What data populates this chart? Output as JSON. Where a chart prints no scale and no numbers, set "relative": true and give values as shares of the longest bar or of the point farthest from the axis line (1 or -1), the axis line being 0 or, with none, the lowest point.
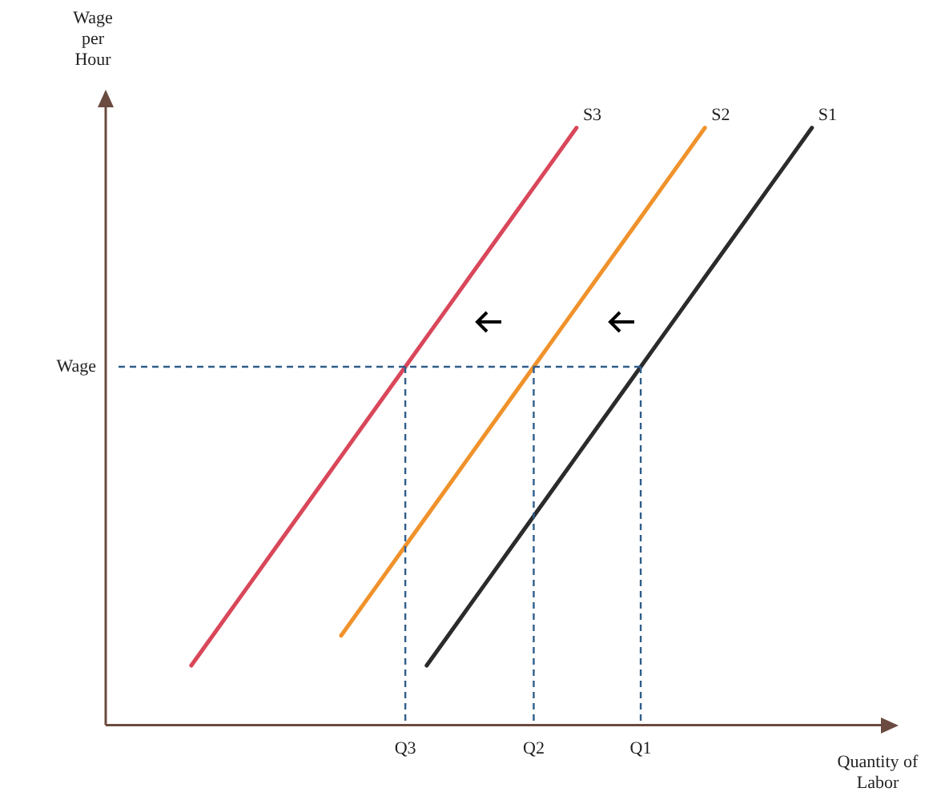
{
  "chart_data": {
    "type": "line",
    "relative": true,
    "xlabel": "Quantity of Labor",
    "ylabel": "Wage per Hour",
    "categories": [
      null,
      null,
      null,
      null,
      null,
      null,
      null,
      null,
      null,
      null,
      null,
      null,
      null,
      null,
      "Q3",
      null,
      null,
      null,
      null,
      null,
      "Q2",
      null,
      null,
      null,
      null,
      "Q1",
      null,
      null,
      null,
      null,
      null,
      null,
      null,
      null,
      null,
      null,
      null
    ],
    "series": [
      {
        "name": "S3",
        "color": "#d9475a",
        "values": [
          null,
          null,
          null,
          null,
          0.1,
          0.15,
          0.2,
          0.25,
          0.3,
          0.35,
          0.4,
          0.45,
          0.5,
          0.55,
          0.6,
          0.65,
          0.7,
          0.75,
          0.8,
          0.85,
          0.9,
          0.95,
          1.0,
          null,
          null,
          null,
          null,
          null,
          null,
          null,
          null,
          null,
          null,
          null,
          null,
          null,
          null
        ]
      },
      {
        "name": "S2",
        "color": "#f0922b",
        "values": [
          null,
          null,
          null,
          null,
          null,
          null,
          null,
          null,
          null,
          null,
          null,
          0.15,
          0.2,
          0.25,
          0.3,
          0.35,
          0.4,
          0.45,
          0.5,
          0.55,
          0.6,
          0.65,
          0.7,
          0.75,
          0.8,
          0.85,
          0.9,
          0.95,
          1.0,
          null,
          null,
          null,
          null,
          null,
          null,
          null,
          null
        ]
      },
      {
        "name": "S1",
        "color": "#2b2b2b",
        "values": [
          null,
          null,
          null,
          null,
          null,
          null,
          null,
          null,
          null,
          null,
          null,
          null,
          null,
          null,
          null,
          0.1,
          0.15,
          0.2,
          0.25,
          0.3,
          0.35,
          0.4,
          0.45,
          0.5,
          0.55,
          0.6,
          0.65,
          0.7,
          0.75,
          0.8,
          0.85,
          0.9,
          0.95,
          1.0,
          null,
          null,
          null
        ]
      }
    ],
    "ref_lines": [
      {
        "axis": "y",
        "value": 0.6,
        "label": "Wage",
        "color": "#2f5d8a",
        "line_style": "dashed"
      },
      {
        "axis": "x",
        "value": "Q3",
        "color": "#2f5d8a",
        "line_style": "dashed"
      },
      {
        "axis": "x",
        "value": "Q2",
        "color": "#2f5d8a",
        "line_style": "dashed"
      },
      {
        "axis": "x",
        "value": "Q1",
        "color": "#2f5d8a",
        "line_style": "dashed"
      }
    ],
    "marker": "none",
    "line_style": "solid"
  }
}
